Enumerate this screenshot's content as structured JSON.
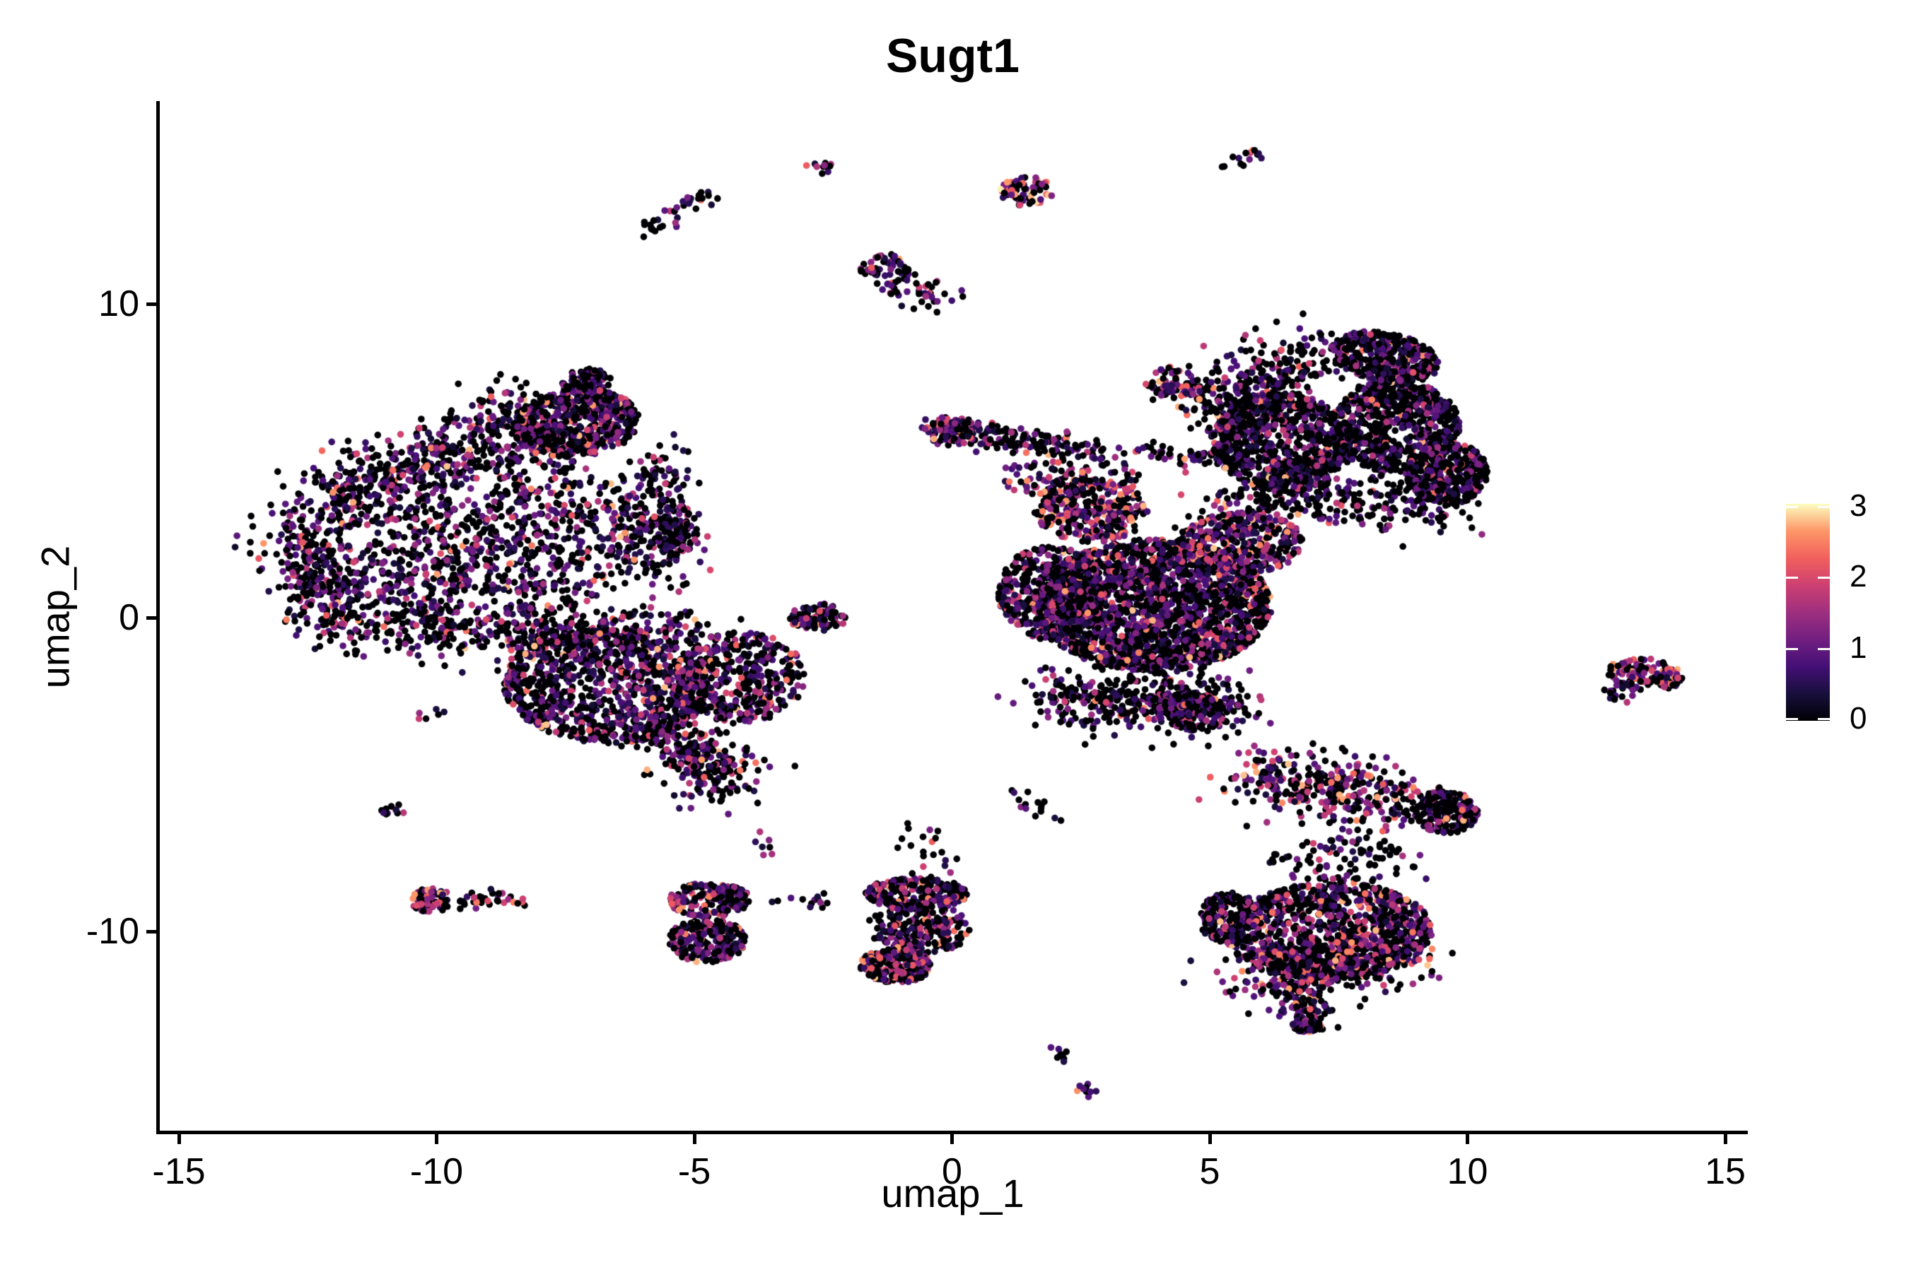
{
  "title": "Sugt1",
  "axes": {
    "x": {
      "label": "umap_1",
      "ticks": [
        -15,
        -10,
        -5,
        0,
        5,
        10,
        15
      ]
    },
    "y": {
      "label": "umap_2",
      "ticks": [
        -10,
        0,
        10
      ]
    }
  },
  "legend": {
    "tick_labels": [
      "0",
      "1",
      "2",
      "3"
    ]
  },
  "colors": {
    "background": "#ffffff",
    "axis": "#000000",
    "text": "#000000",
    "colorbar_tick": "#ffffff"
  },
  "chart_data": {
    "type": "scatter",
    "title": "Sugt1",
    "xlabel": "umap_1",
    "ylabel": "umap_2",
    "xlim": [
      -15.4,
      15.45
    ],
    "ylim": [
      -16.45,
      16.45
    ],
    "x_ticks": [
      -15,
      -10,
      -5,
      0,
      5,
      10,
      15
    ],
    "y_ticks": [
      -10,
      0,
      10
    ],
    "grid": false,
    "legend_position": "right",
    "color_scale": {
      "name": "magma",
      "vmin": 0,
      "vmax": 3.05,
      "tick_values": [
        0,
        1,
        2,
        3
      ],
      "stops": [
        "#000004",
        "#180f3d",
        "#440f76",
        "#721f81",
        "#9e2f7f",
        "#cd4071",
        "#f1605d",
        "#fd9668",
        "#fcfdbf"
      ]
    },
    "point": {
      "radius_px": 4.8,
      "opacity": 1
    },
    "seed": 1337,
    "expression_mixes": {
      "std": [
        0.5,
        0.3,
        0.15,
        0.05
      ],
      "dark": [
        0.62,
        0.26,
        0.09,
        0.03
      ],
      "pink": [
        0.4,
        0.24,
        0.22,
        0.14
      ],
      "hot": [
        0.3,
        0.2,
        0.26,
        0.24
      ]
    },
    "value_bands": {
      "zero": 0,
      "low": [
        0.25,
        1.1
      ],
      "mid": [
        1.1,
        2.0
      ],
      "high": [
        2.0,
        2.85
      ],
      "hot_high": [
        2.0,
        3.02
      ]
    },
    "clusters": [
      {
        "id": "left-island-top-edge",
        "type": "streak",
        "x1": -12.4,
        "y1": 3.4,
        "x2": -7.9,
        "y2": 6.7,
        "w": 0.55,
        "n": 500,
        "mix": "std"
      },
      {
        "id": "left-island-ne-lobe",
        "type": "disk",
        "cx": -7.3,
        "cy": 6.2,
        "rx": 1.25,
        "ry": 1.05,
        "rot": 20,
        "k": 0.42,
        "n": 560,
        "mix": "std"
      },
      {
        "id": "left-island-peak",
        "type": "disk",
        "cx": -7.1,
        "cy": 7.5,
        "rx": 0.5,
        "ry": 0.45,
        "rot": 0,
        "k": 0.5,
        "n": 110,
        "mix": "std"
      },
      {
        "id": "left-island-west-edge",
        "type": "streak",
        "x1": -12.8,
        "y1": 2.8,
        "x2": -12.0,
        "y2": 0.0,
        "w": 0.45,
        "n": 260,
        "mix": "std"
      },
      {
        "id": "left-island-south-edge",
        "type": "streak",
        "x1": -12.0,
        "y1": -0.3,
        "x2": -6.5,
        "y2": -0.7,
        "w": 0.45,
        "n": 300,
        "mix": "std"
      },
      {
        "id": "left-island-east-edge",
        "type": "streak",
        "x1": -5.75,
        "y1": 5.0,
        "x2": -5.65,
        "y2": 1.4,
        "w": 0.4,
        "n": 200,
        "mix": "std"
      },
      {
        "id": "left-island-east-bump",
        "type": "disk",
        "cx": -5.4,
        "cy": 2.8,
        "rx": 0.45,
        "ry": 0.85,
        "rot": 0,
        "k": 0.5,
        "n": 80,
        "mix": "std"
      },
      {
        "id": "left-island-interior",
        "type": "disk",
        "cx": -9.2,
        "cy": 2.6,
        "rx": 3.2,
        "ry": 2.95,
        "rot": 0,
        "k": 0.52,
        "n": 640,
        "mix": "std"
      },
      {
        "id": "left-island-mid-band",
        "type": "streak",
        "x1": -11.1,
        "y1": 0.5,
        "x2": -7.1,
        "y2": 3.9,
        "w": 0.85,
        "n": 340,
        "mix": "std"
      },
      {
        "id": "southwest-cluster-core",
        "type": "disk",
        "cx": -6.7,
        "cy": -2.2,
        "rx": 2.0,
        "ry": 1.8,
        "rot": -10,
        "k": 0.42,
        "n": 950,
        "mix": "std"
      },
      {
        "id": "southwest-cluster-east",
        "type": "disk",
        "cx": -4.1,
        "cy": -1.9,
        "rx": 1.25,
        "ry": 1.45,
        "rot": 0,
        "k": 0.46,
        "n": 400,
        "mix": "std"
      },
      {
        "id": "southwest-beak",
        "type": "streak",
        "x1": -5.4,
        "y1": -3.8,
        "x2": -4.3,
        "y2": -5.4,
        "w": 0.45,
        "n": 250,
        "mix": "std"
      },
      {
        "id": "southwest-top-edge",
        "type": "streak",
        "x1": -8.5,
        "y1": -0.5,
        "x2": -4.8,
        "y2": -0.3,
        "w": 0.35,
        "n": 170,
        "mix": "std"
      },
      {
        "id": "small-center-left-blob",
        "type": "disk",
        "cx": -2.6,
        "cy": 0.0,
        "rx": 0.55,
        "ry": 0.45,
        "rot": 0,
        "k": 0.5,
        "n": 85,
        "mix": "std"
      },
      {
        "id": "bridge-band-upper",
        "type": "streak",
        "x1": -0.6,
        "y1": 6.2,
        "x2": 2.3,
        "y2": 5.6,
        "w": 0.13,
        "n": 90,
        "mix": "std"
      },
      {
        "id": "bridge-band-lower",
        "type": "streak",
        "x1": -0.4,
        "y1": 5.75,
        "x2": 2.3,
        "y2": 5.3,
        "w": 0.13,
        "n": 70,
        "mix": "std"
      },
      {
        "id": "bridge-band-knot",
        "type": "disk",
        "cx": 0.0,
        "cy": 6.0,
        "rx": 0.55,
        "ry": 0.4,
        "rot": 0,
        "k": 0.5,
        "n": 80,
        "mix": "pink"
      },
      {
        "id": "bridge-band-dotted",
        "type": "streak",
        "x1": 2.3,
        "y1": 5.45,
        "x2": 5.6,
        "y2": 5.0,
        "w": 0.15,
        "n": 75,
        "mix": "std"
      },
      {
        "id": "center-to-ne-connector",
        "type": "streak",
        "x1": 5.2,
        "y1": 2.9,
        "x2": 6.2,
        "y2": 4.1,
        "w": 0.4,
        "n": 70,
        "mix": "dark"
      },
      {
        "id": "central-mass-core",
        "type": "disk",
        "cx": 3.9,
        "cy": 0.4,
        "rx": 2.3,
        "ry": 2.1,
        "rot": 0,
        "k": 0.46,
        "n": 2200,
        "mix": "std"
      },
      {
        "id": "central-mass-west-bulge",
        "type": "disk",
        "cx": 1.9,
        "cy": 0.8,
        "rx": 1.0,
        "ry": 1.5,
        "rot": 0,
        "k": 0.5,
        "n": 450,
        "mix": "std"
      },
      {
        "id": "central-mass-neck",
        "type": "disk",
        "cx": 2.7,
        "cy": 3.4,
        "rx": 1.1,
        "ry": 1.0,
        "rot": 0,
        "k": 0.5,
        "n": 320,
        "mix": "pink"
      },
      {
        "id": "central-mass-ne-shoulder",
        "type": "disk",
        "cx": 5.6,
        "cy": 2.4,
        "rx": 1.2,
        "ry": 1.0,
        "rot": 0,
        "k": 0.5,
        "n": 340,
        "mix": "pink"
      },
      {
        "id": "central-mass-south-edge",
        "type": "streak",
        "x1": 1.9,
        "y1": -2.5,
        "x2": 5.4,
        "y2": -2.8,
        "w": 0.5,
        "n": 420,
        "mix": "dark"
      },
      {
        "id": "central-mass-south-tail",
        "type": "disk",
        "cx": 4.6,
        "cy": -3.0,
        "rx": 0.7,
        "ry": 0.6,
        "rot": 0,
        "k": 0.5,
        "n": 140,
        "mix": "std"
      },
      {
        "id": "central-mass-top-scatter",
        "type": "disk",
        "cx": 2.3,
        "cy": 4.5,
        "rx": 1.4,
        "ry": 0.7,
        "rot": 0,
        "k": 0.6,
        "n": 110,
        "mix": "std"
      },
      {
        "id": "small-mid-upper-blob",
        "type": "disk",
        "cx": 4.3,
        "cy": 7.5,
        "rx": 0.55,
        "ry": 0.5,
        "rot": 0,
        "k": 0.5,
        "n": 70,
        "mix": "pink"
      },
      {
        "id": "small-mid-upper-stragglers",
        "type": "disk",
        "cx": 5.0,
        "cy": 7.1,
        "rx": 0.3,
        "ry": 0.25,
        "rot": 0,
        "k": 0.5,
        "n": 12,
        "mix": "std"
      },
      {
        "id": "northeast-island-west-lobe",
        "type": "disk",
        "cx": 6.4,
        "cy": 5.6,
        "rx": 1.35,
        "ry": 1.6,
        "rot": 10,
        "k": 0.4,
        "n": 800,
        "mix": "dark"
      },
      {
        "id": "northeast-island-east-lobe",
        "type": "disk",
        "cx": 8.6,
        "cy": 6.1,
        "rx": 1.25,
        "ry": 1.45,
        "rot": 0,
        "k": 0.4,
        "n": 700,
        "mix": "dark"
      },
      {
        "id": "northeast-island-nw-edge",
        "type": "streak",
        "x1": 5.15,
        "y1": 6.4,
        "x2": 7.0,
        "y2": 8.6,
        "w": 0.55,
        "n": 300,
        "mix": "dark"
      },
      {
        "id": "northeast-island-head",
        "type": "disk",
        "cx": 8.4,
        "cy": 8.3,
        "rx": 1.1,
        "ry": 0.75,
        "rot": -25,
        "k": 0.45,
        "n": 430,
        "mix": "dark"
      },
      {
        "id": "northeast-island-right-lobe",
        "type": "disk",
        "cx": 9.6,
        "cy": 4.6,
        "rx": 0.8,
        "ry": 1.0,
        "rot": 0,
        "k": 0.45,
        "n": 350,
        "mix": "dark"
      },
      {
        "id": "northeast-island-south-edge",
        "type": "streak",
        "x1": 5.8,
        "y1": 4.0,
        "x2": 9.6,
        "y2": 3.5,
        "w": 0.45,
        "n": 240,
        "mix": "dark"
      },
      {
        "id": "southeast-arm",
        "type": "streak",
        "x1": 5.8,
        "y1": -4.9,
        "x2": 8.9,
        "y2": -6.0,
        "w": 0.55,
        "n": 360,
        "mix": "pink"
      },
      {
        "id": "southeast-arm-knob",
        "type": "disk",
        "cx": 9.6,
        "cy": -6.2,
        "rx": 0.6,
        "ry": 0.68,
        "rot": 0,
        "k": 0.45,
        "n": 210,
        "mix": "dark"
      },
      {
        "id": "southeast-body",
        "type": "disk",
        "cx": 7.3,
        "cy": -10.0,
        "rx": 2.0,
        "ry": 1.55,
        "rot": 5,
        "k": 0.45,
        "n": 950,
        "mix": "std"
      },
      {
        "id": "southeast-west-tip",
        "type": "disk",
        "cx": 5.4,
        "cy": -9.6,
        "rx": 0.6,
        "ry": 0.85,
        "rot": 0,
        "k": 0.5,
        "n": 170,
        "mix": "std"
      },
      {
        "id": "southeast-lower-band",
        "type": "streak",
        "x1": 5.9,
        "y1": -11.2,
        "x2": 8.9,
        "y2": -10.7,
        "w": 0.55,
        "n": 320,
        "mix": "pink"
      },
      {
        "id": "southeast-tail",
        "type": "streak",
        "x1": 6.6,
        "y1": -11.6,
        "x2": 6.9,
        "y2": -12.6,
        "w": 0.3,
        "n": 110,
        "mix": "std"
      },
      {
        "id": "southeast-tail-knot",
        "type": "disk",
        "cx": 6.9,
        "cy": -13.0,
        "rx": 0.3,
        "ry": 0.22,
        "rot": 0,
        "k": 0.5,
        "n": 55,
        "mix": "std"
      },
      {
        "id": "southeast-sparse-gap",
        "type": "disk",
        "cx": 7.6,
        "cy": -7.7,
        "rx": 1.5,
        "ry": 0.8,
        "rot": 0,
        "k": 0.6,
        "n": 90,
        "mix": "dark"
      },
      {
        "id": "far-right-blob",
        "type": "disk",
        "cx": 13.45,
        "cy": -1.8,
        "rx": 0.75,
        "ry": 0.5,
        "rot": -15,
        "k": 0.45,
        "n": 115,
        "mix": "pink"
      },
      {
        "id": "far-right-tail",
        "type": "streak",
        "x1": 12.8,
        "y1": -2.5,
        "x2": 13.15,
        "y2": -2.15,
        "w": 0.15,
        "n": 20,
        "mix": "std"
      },
      {
        "id": "bottom-left-pair-top",
        "type": "disk",
        "cx": -4.7,
        "cy": -9.0,
        "rx": 0.8,
        "ry": 0.55,
        "rot": 0,
        "k": 0.45,
        "n": 190,
        "mix": "pink"
      },
      {
        "id": "bottom-left-pair-bottom",
        "type": "disk",
        "cx": -4.75,
        "cy": -10.3,
        "rx": 0.75,
        "ry": 0.7,
        "rot": 0,
        "k": 0.45,
        "n": 220,
        "mix": "std"
      },
      {
        "id": "bottom-bridge-dots",
        "type": "streak",
        "x1": -3.6,
        "y1": -9.1,
        "x2": -2.4,
        "y2": -9.0,
        "w": 0.12,
        "n": 13,
        "mix": "dark"
      },
      {
        "id": "bottom-center-top-edge",
        "type": "disk",
        "cx": -0.7,
        "cy": -8.8,
        "rx": 1.0,
        "ry": 0.5,
        "rot": 0,
        "k": 0.42,
        "n": 250,
        "mix": "std"
      },
      {
        "id": "bottom-center-body",
        "type": "disk",
        "cx": -0.65,
        "cy": -9.9,
        "rx": 1.0,
        "ry": 0.85,
        "rot": 0,
        "k": 0.55,
        "n": 220,
        "mix": "std"
      },
      {
        "id": "bottom-center-sw-dense",
        "type": "disk",
        "cx": -1.1,
        "cy": -11.1,
        "rx": 0.7,
        "ry": 0.55,
        "rot": 0,
        "k": 0.45,
        "n": 250,
        "mix": "pink"
      },
      {
        "id": "bottom-center-top-tail",
        "type": "streak",
        "x1": -0.9,
        "y1": -7.0,
        "x2": -0.3,
        "y2": -8.2,
        "w": 0.3,
        "n": 25,
        "mix": "dark"
      },
      {
        "id": "tiny-bottom-streak-1",
        "type": "streak",
        "x1": 2.0,
        "y1": -13.8,
        "x2": 2.3,
        "y2": -14.2,
        "w": 0.1,
        "n": 10,
        "mix": "dark"
      },
      {
        "id": "tiny-bottom-streak-2",
        "type": "streak",
        "x1": 2.5,
        "y1": -14.9,
        "x2": 2.75,
        "y2": -15.3,
        "w": 0.1,
        "n": 9,
        "mix": "dark"
      },
      {
        "id": "tiny-mid-streak",
        "type": "streak",
        "x1": 1.25,
        "y1": -5.6,
        "x2": 1.9,
        "y2": -6.3,
        "w": 0.14,
        "n": 15,
        "mix": "dark"
      },
      {
        "id": "tiny-left-blob",
        "type": "disk",
        "cx": -10.85,
        "cy": -6.1,
        "rx": 0.26,
        "ry": 0.2,
        "rot": 0,
        "k": 0.5,
        "n": 12,
        "mix": "std"
      },
      {
        "id": "hot-left-knot",
        "type": "disk",
        "cx": -10.1,
        "cy": -9.0,
        "rx": 0.42,
        "ry": 0.38,
        "rot": 0,
        "k": 0.45,
        "n": 78,
        "mix": "hot"
      },
      {
        "id": "hot-left-tail",
        "type": "streak",
        "x1": -9.5,
        "y1": -9.1,
        "x2": -8.7,
        "y2": -9.0,
        "w": 0.16,
        "n": 28,
        "mix": "pink"
      },
      {
        "id": "hot-left-stragglers",
        "type": "streak",
        "x1": -8.6,
        "y1": -9.0,
        "x2": -8.2,
        "y2": -9.05,
        "w": 0.08,
        "n": 5,
        "mix": "pink"
      },
      {
        "id": "top-left-arc-streak",
        "type": "streak",
        "x1": -5.9,
        "y1": 12.3,
        "x2": -4.7,
        "y2": 13.5,
        "w": 0.16,
        "n": 36,
        "mix": "dark"
      },
      {
        "id": "top-tiny-streak",
        "type": "streak",
        "x1": -2.75,
        "y1": 14.1,
        "x2": -2.35,
        "y2": 14.55,
        "w": 0.1,
        "n": 11,
        "mix": "dark"
      },
      {
        "id": "top-middle-colorful-blob",
        "type": "disk",
        "cx": 1.45,
        "cy": 13.6,
        "rx": 0.55,
        "ry": 0.48,
        "rot": 0,
        "k": 0.45,
        "n": 72,
        "mix": "hot"
      },
      {
        "id": "top-right-streak",
        "type": "streak",
        "x1": 5.35,
        "y1": 14.35,
        "x2": 5.95,
        "y2": 14.9,
        "w": 0.1,
        "n": 14,
        "mix": "dark"
      },
      {
        "id": "upper-middle-blob",
        "type": "disk",
        "cx": -1.3,
        "cy": 11.1,
        "rx": 0.5,
        "ry": 0.5,
        "rot": 0,
        "k": 0.45,
        "n": 58,
        "mix": "std"
      },
      {
        "id": "upper-middle-tail",
        "type": "streak",
        "x1": -1.0,
        "y1": 10.6,
        "x2": -0.3,
        "y2": 10.2,
        "w": 0.25,
        "n": 38,
        "mix": "std"
      },
      {
        "id": "dust-left",
        "type": "disk",
        "cx": -10.1,
        "cy": -3.1,
        "rx": 0.3,
        "ry": 0.25,
        "rot": 0,
        "k": 0.5,
        "n": 6,
        "mix": "dark"
      },
      {
        "id": "dust-center",
        "type": "disk",
        "cx": -3.6,
        "cy": -7.2,
        "rx": 0.4,
        "ry": 0.5,
        "rot": 0,
        "k": 0.5,
        "n": 7,
        "mix": "dark"
      }
    ]
  }
}
